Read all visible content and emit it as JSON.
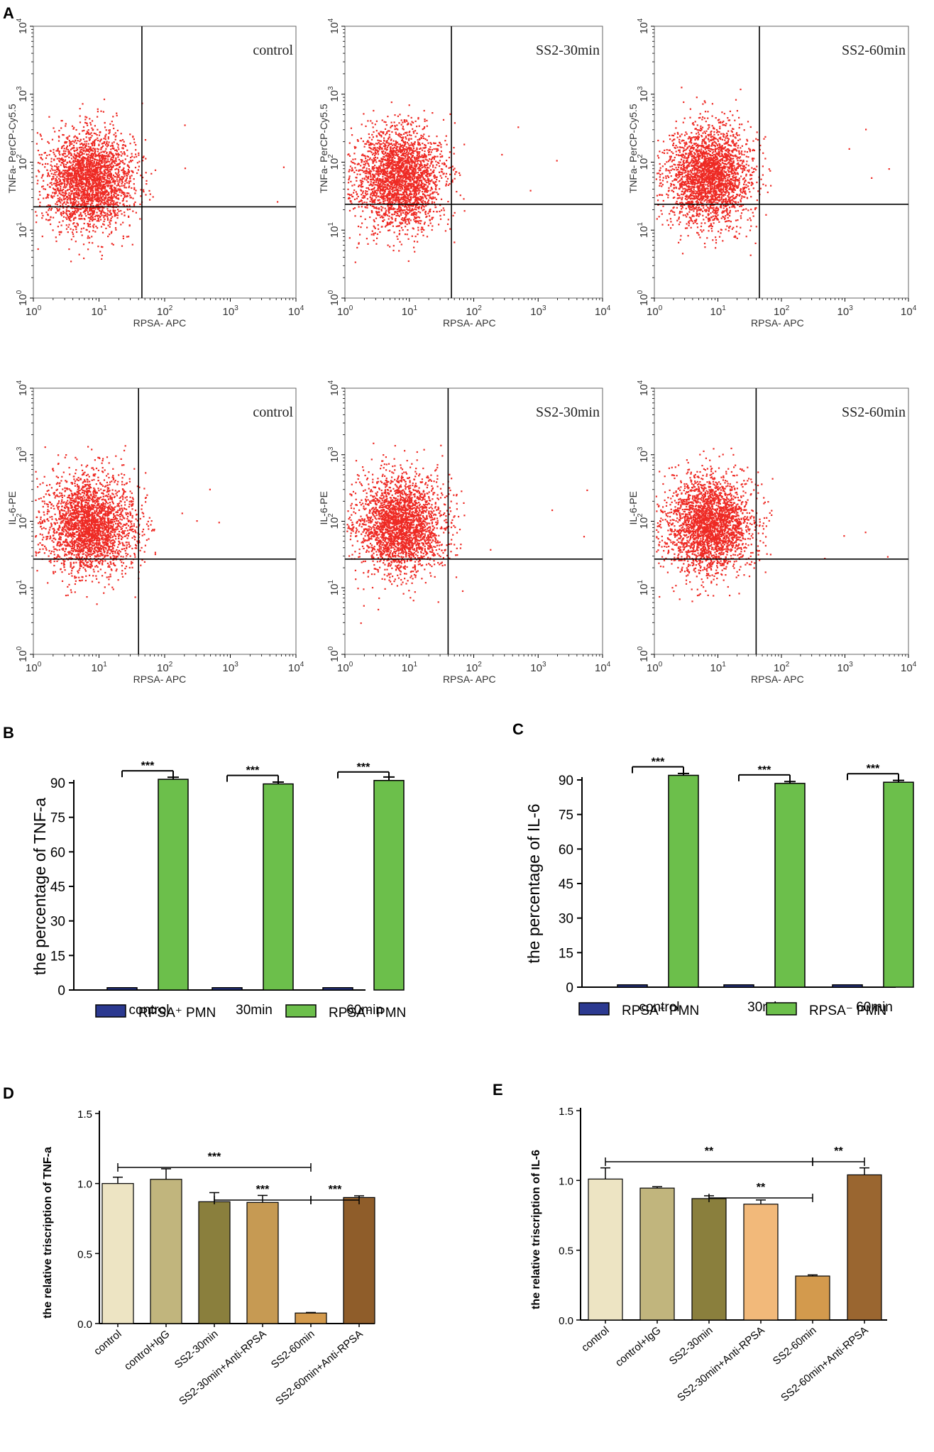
{
  "chart_data": [
    {
      "id": "A",
      "type": "scatter",
      "panel_label": "A",
      "plots": [
        {
          "sample": "control",
          "xlabel": "RPSA- APC",
          "ylabel": "TNFa- PerCP-Cy5.5",
          "gate_x": 45,
          "gate_y": 22
        },
        {
          "sample": "SS2-30min",
          "xlabel": "RPSA- APC",
          "ylabel": "TNFa- PerCP-Cy5.5",
          "gate_x": 45,
          "gate_y": 24
        },
        {
          "sample": "SS2-60min",
          "xlabel": "RPSA- APC",
          "ylabel": "TNFa- PerCP-Cy5.5",
          "gate_x": 45,
          "gate_y": 24
        },
        {
          "sample": "control",
          "xlabel": "RPSA- APC",
          "ylabel": "IL-6-PE",
          "gate_x": 40,
          "gate_y": 27
        },
        {
          "sample": "SS2-30min",
          "xlabel": "RPSA- APC",
          "ylabel": "IL-6-PE",
          "gate_x": 40,
          "gate_y": 27
        },
        {
          "sample": "SS2-60min",
          "xlabel": "RPSA- APC",
          "ylabel": "IL-6-PE",
          "gate_x": 40,
          "gate_y": 27
        }
      ],
      "axis_scale": "log",
      "xlim": [
        1,
        10000
      ],
      "ylim": [
        1,
        10000
      ],
      "tick_base": "10",
      "tick_exponents": [
        "0",
        "1",
        "2",
        "3",
        "4"
      ],
      "dot_color": "#ee2a24"
    },
    {
      "id": "B",
      "type": "bar",
      "panel_label": "B",
      "ylabel": "the percentage of TNF-a",
      "ylim": [
        0,
        90
      ],
      "yticks": [
        "0",
        "15",
        "30",
        "45",
        "60",
        "75",
        "90"
      ],
      "categories": [
        "control",
        "30min",
        "60min"
      ],
      "series": [
        {
          "name": "RPSA⁺ PMN",
          "color": "#2b3990",
          "values": [
            1,
            1,
            1
          ]
        },
        {
          "name": "RPSA⁻ PMN",
          "color": "#6cbf4b",
          "values": [
            91.5,
            89.5,
            91
          ]
        }
      ],
      "errors": [
        0.9,
        0.8,
        1.5
      ],
      "significance": [
        "***",
        "***",
        "***"
      ]
    },
    {
      "id": "C",
      "type": "bar",
      "panel_label": "C",
      "ylabel": "the percentage of IL-6",
      "ylim": [
        0,
        90
      ],
      "yticks": [
        "0",
        "15",
        "30",
        "45",
        "60",
        "75",
        "90"
      ],
      "categories": [
        "control",
        "30min",
        "60min"
      ],
      "series": [
        {
          "name": "RPSA⁺ PMN",
          "color": "#2b3990",
          "values": [
            1,
            1,
            1
          ]
        },
        {
          "name": "RPSA⁻ PMN",
          "color": "#6cbf4b",
          "values": [
            92,
            88.5,
            89
          ]
        }
      ],
      "errors": [
        0.8,
        0.8,
        0.8
      ],
      "significance": [
        "***",
        "***",
        "***"
      ]
    },
    {
      "id": "D",
      "type": "bar",
      "panel_label": "D",
      "ylabel": "the relative triscription of TNF-a",
      "ylim": [
        0,
        1.5
      ],
      "yticks": [
        "0.0",
        "0.5",
        "1.0",
        "1.5"
      ],
      "categories": [
        "control",
        "control+IgG",
        "SS2-30min",
        "SS2-30min+Anti-RPSA",
        "SS2-60min",
        "SS2-60min+Anti-RPSA"
      ],
      "values": [
        1.0,
        1.03,
        0.87,
        0.865,
        0.075,
        0.9
      ],
      "errors": [
        0.045,
        0.075,
        0.065,
        0.05,
        0.004,
        0.012
      ],
      "colors": [
        "#ede4c3",
        "#c1b57d",
        "#8a7f3d",
        "#c69a53",
        "#d39a4d",
        "#8f5d2a"
      ],
      "significance": [
        {
          "from": "control",
          "to": "SS2-60min",
          "label": "***"
        },
        {
          "from": "SS2-30min",
          "to": "SS2-60min",
          "label": "***"
        },
        {
          "from": "SS2-60min",
          "to": "SS2-60min+Anti-RPSA",
          "label": "***"
        }
      ]
    },
    {
      "id": "E",
      "type": "bar",
      "panel_label": "E",
      "ylabel": "the relative triscription of IL-6",
      "ylim": [
        0,
        1.5
      ],
      "yticks": [
        "0.0",
        "0.5",
        "1.0",
        "1.5"
      ],
      "categories": [
        "control",
        "control+IgG",
        "SS2-30min",
        "SS2-30min+Anti-RPSA",
        "SS2-60min",
        "SS2-60min+Anti-RPSA"
      ],
      "values": [
        1.01,
        0.945,
        0.87,
        0.83,
        0.315,
        1.04
      ],
      "errors": [
        0.08,
        0.01,
        0.02,
        0.03,
        0.008,
        0.05
      ],
      "colors": [
        "#ede4c3",
        "#c1b57d",
        "#8a7f3d",
        "#f2b97a",
        "#d39a4d",
        "#9a6630"
      ],
      "significance": [
        {
          "from": "control",
          "to": "SS2-60min",
          "label": "**"
        },
        {
          "from": "SS2-30min",
          "to": "SS2-60min",
          "label": "**"
        },
        {
          "from": "SS2-60min",
          "to": "SS2-60min+Anti-RPSA",
          "label": "**"
        }
      ]
    }
  ]
}
